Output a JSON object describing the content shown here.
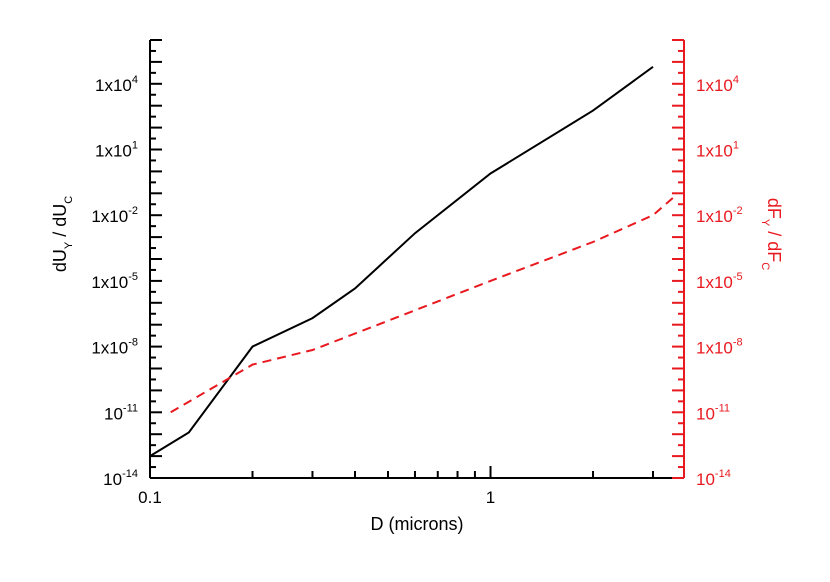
{
  "chart_data": {
    "type": "line",
    "xlabel": "D (microns)",
    "ylabel_left": {
      "base": "dU",
      "sub1": "Y",
      "mid": " / dU",
      "sub2": "C"
    },
    "ylabel_right": {
      "base": "dF",
      "sub1": "Y",
      "mid": " / dF",
      "sub2": "C"
    },
    "x_scale": "log",
    "y_scale": "log",
    "xlim": [
      0.1,
      3.7
    ],
    "ylim_left": [
      1e-14,
      1000000.0
    ],
    "ylim_right": [
      1e-14,
      1000000.0
    ],
    "x_ticks": [
      {
        "value": 0.1,
        "label": "0.1"
      },
      {
        "value": 1,
        "label": "1"
      }
    ],
    "y_ticks_left": [
      {
        "value": 1e-14,
        "mant": "10",
        "exp": "-14"
      },
      {
        "value": 1e-11,
        "mant": "10",
        "exp": "-11"
      },
      {
        "value": 1e-08,
        "mant": "1x10",
        "exp": "-8"
      },
      {
        "value": 1e-05,
        "mant": "1x10",
        "exp": "-5"
      },
      {
        "value": 0.01,
        "mant": "1x10",
        "exp": "-2"
      },
      {
        "value": 10,
        "mant": "1x10",
        "exp": "1"
      },
      {
        "value": 10000.0,
        "mant": "1x10",
        "exp": "4"
      }
    ],
    "y_ticks_right": [
      {
        "value": 1e-14,
        "mant": "10",
        "exp": "-14"
      },
      {
        "value": 1e-11,
        "mant": "10",
        "exp": "-11"
      },
      {
        "value": 1e-08,
        "mant": "1x10",
        "exp": "-8"
      },
      {
        "value": 1e-05,
        "mant": "1x10",
        "exp": "-5"
      },
      {
        "value": 0.01,
        "mant": "1x10",
        "exp": "-2"
      },
      {
        "value": 10,
        "mant": "1x10",
        "exp": "1"
      },
      {
        "value": 10000.0,
        "mant": "1x10",
        "exp": "4"
      }
    ],
    "series": [
      {
        "axis": "left",
        "color": "#000000",
        "style": "solid",
        "x": [
          0.1,
          0.13,
          0.2,
          0.3,
          0.4,
          0.6,
          1,
          2,
          3
        ],
        "y": [
          1e-13,
          1.2e-12,
          1e-08,
          2e-07,
          4.5e-06,
          0.0015,
          0.8,
          600.0,
          60000.0
        ]
      },
      {
        "axis": "right",
        "color": "#e8191f",
        "style": "dashed",
        "x": [
          0.115,
          0.2,
          0.3,
          0.5,
          1,
          2,
          3,
          3.5
        ],
        "y": [
          1e-11,
          1.5e-09,
          7e-09,
          1.5e-07,
          1e-05,
          0.0006,
          0.01,
          0.08
        ]
      }
    ],
    "colors": {
      "left_axis": "#000000",
      "right_axis": "#e8191f"
    },
    "grid": false,
    "legend": "none"
  }
}
